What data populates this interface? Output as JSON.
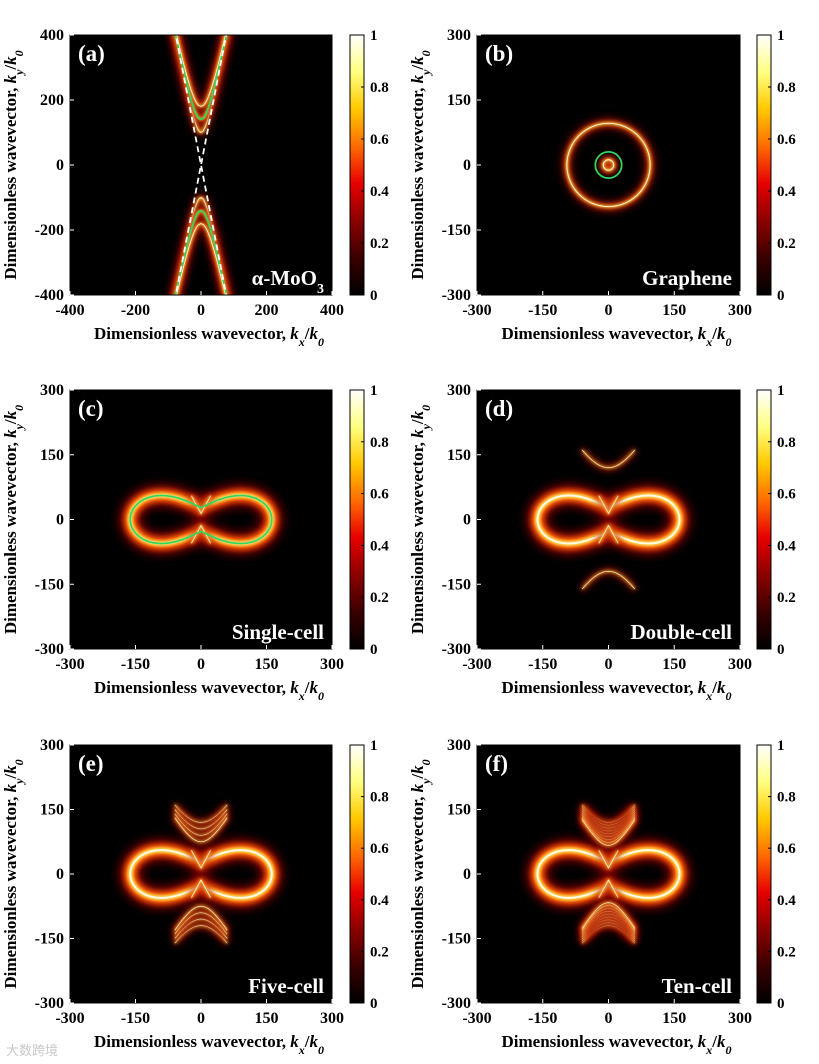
{
  "figure": {
    "colorbar_ticks": [
      "0",
      "0.2",
      "0.4",
      "0.6",
      "0.8",
      "1"
    ],
    "colormap": [
      "#000000",
      "#3a0000",
      "#8b0000",
      "#e60000",
      "#ff6a00",
      "#ffc800",
      "#ffff80",
      "#ffffff"
    ],
    "highlight_color": "#33d65a",
    "asymptote_color": "#ffffff"
  },
  "chart_data": [
    {
      "id": "a",
      "type": "heatmap",
      "panel_label": "(a)",
      "material_label": "α-MoO",
      "material_sub": "3",
      "xlabel": "Dimensionless wavevector, k_x/k_0",
      "ylabel": "Dimensionless wavevector, k_y/k_0",
      "xlim": [
        -400,
        400
      ],
      "ylim": [
        -400,
        400
      ],
      "xticks": [
        -400,
        -200,
        0,
        200,
        400
      ],
      "yticks": [
        -400,
        -200,
        0,
        200,
        400
      ],
      "show_xlabel": true,
      "curves": {
        "hyperbola_vertices_ky": [
          100,
          140,
          180
        ],
        "slope": 4.8,
        "green_vertex_ky": 140,
        "asymptote_slope": 5.2
      }
    },
    {
      "id": "b",
      "type": "heatmap",
      "panel_label": "(b)",
      "material_label": "Graphene",
      "xlabel": "Dimensionless wavevector, k_x/k_0",
      "ylabel": "Dimensionless wavevector, k_y/k_0",
      "xlim": [
        -300,
        300
      ],
      "ylim": [
        -300,
        300
      ],
      "xticks": [
        -300,
        -150,
        0,
        150,
        300
      ],
      "yticks": [
        -300,
        -150,
        0,
        150,
        300
      ],
      "show_xlabel": true,
      "curves": {
        "circle_radii": [
          95,
          12
        ],
        "green_radius": 30
      }
    },
    {
      "id": "c",
      "type": "heatmap",
      "panel_label": "(c)",
      "material_label": "Single-cell",
      "xlabel": "Dimensionless wavevector, k_x/k_0",
      "ylabel": "Dimensionless wavevector, k_y/k_0",
      "xlim": [
        -300,
        300
      ],
      "ylim": [
        -300,
        300
      ],
      "xticks": [
        -300,
        -150,
        0,
        150,
        300
      ],
      "yticks": [
        -300,
        -150,
        0,
        150,
        300
      ],
      "show_xlabel": true,
      "branches": 0,
      "green": true
    },
    {
      "id": "d",
      "type": "heatmap",
      "panel_label": "(d)",
      "material_label": "Double-cell",
      "xlabel": "Dimensionless wavevector, k_x/k_0",
      "ylabel": "Dimensionless wavevector, k_y/k_0",
      "xlim": [
        -300,
        300
      ],
      "ylim": [
        -300,
        300
      ],
      "xticks": [
        -300,
        -150,
        0,
        150,
        300
      ],
      "yticks": [
        -300,
        -150,
        0,
        150,
        300
      ],
      "show_xlabel": true,
      "branches": 1,
      "green": false
    },
    {
      "id": "e",
      "type": "heatmap",
      "panel_label": "(e)",
      "material_label": "Five-cell",
      "xlabel": "Dimensionless wavevector, k_x/k_0",
      "ylabel": "Dimensionless wavevector, k_y/k_0",
      "xlim": [
        -300,
        300
      ],
      "ylim": [
        -300,
        300
      ],
      "xticks": [
        -300,
        -150,
        0,
        150,
        300
      ],
      "yticks": [
        -300,
        -150,
        0,
        150,
        300
      ],
      "show_xlabel": true,
      "branches": 4,
      "green": false
    },
    {
      "id": "f",
      "type": "heatmap",
      "panel_label": "(f)",
      "material_label": "Ten-cell",
      "xlabel": "Dimensionless wavevector, k_x/k_0",
      "ylabel": "Dimensionless wavevector, k_y/k_0",
      "xlim": [
        -300,
        300
      ],
      "ylim": [
        -300,
        300
      ],
      "xticks": [
        -300,
        -150,
        0,
        150,
        300
      ],
      "yticks": [
        -300,
        -150,
        0,
        150,
        300
      ],
      "show_xlabel": true,
      "branches": 9,
      "green": false
    }
  ],
  "watermark": "大数跨境"
}
